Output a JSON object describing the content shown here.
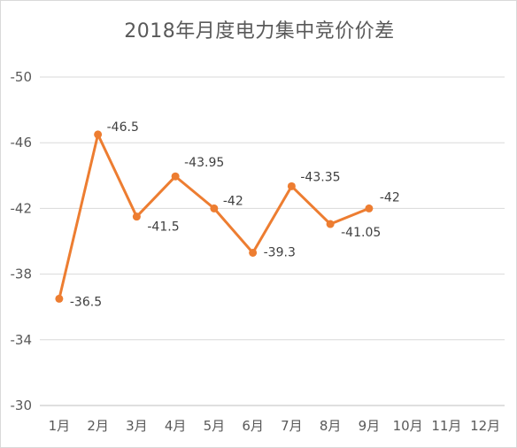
{
  "chart_data": {
    "type": "line",
    "title": "2018年月度电力集中竞价价差",
    "xlabel": "",
    "ylabel": "",
    "categories": [
      "1月",
      "2月",
      "3月",
      "4月",
      "5月",
      "6月",
      "7月",
      "8月",
      "9月",
      "10月",
      "11月",
      "12月"
    ],
    "series": [
      {
        "values": [
          -36.5,
          -46.5,
          -41.5,
          -43.95,
          -42,
          -39.3,
          -43.35,
          -41.05,
          -42,
          null,
          null,
          null
        ],
        "labels": [
          "-36.5",
          "-46.5",
          "-41.5",
          "-43.95",
          "-42",
          "-39.3",
          "-43.35",
          "-41.05",
          "-42",
          "",
          "",
          ""
        ]
      }
    ],
    "yticks": [
      -30,
      -34,
      -38,
      -42,
      -46,
      -50
    ],
    "ytick_labels": [
      "-30",
      "-34",
      "-38",
      "-42",
      "-46",
      "-50"
    ],
    "ylim": [
      -30,
      -50
    ],
    "y_axis_inverted": true,
    "grid": "horizontal",
    "legend": "none",
    "line_color": "#ED7D31"
  }
}
